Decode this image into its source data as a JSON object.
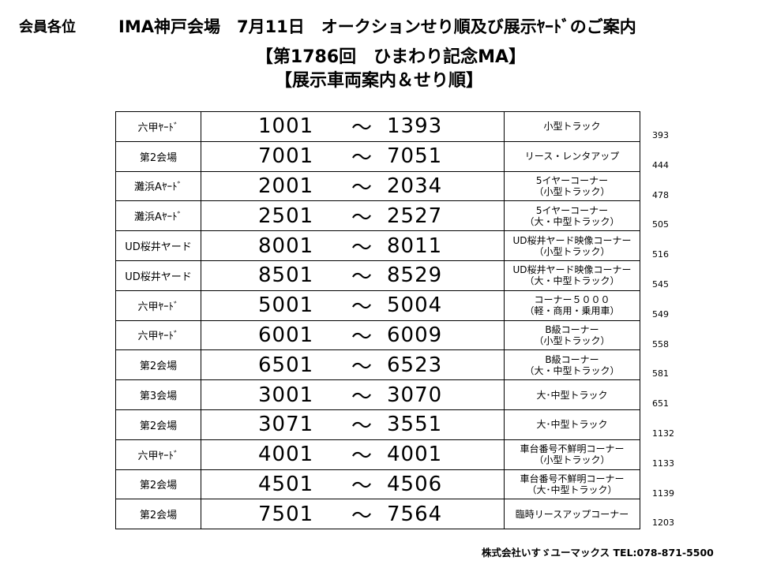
{
  "header": {
    "addressee": "会員各位",
    "title": "IMA神戸会場　7月11日　オークションせり順及び展示ﾔｰﾄﾞのご案内",
    "subtitle1": "【第1786回　ひまわり記念MA】",
    "subtitle2": "【展示車両案内＆せり順】"
  },
  "table": {
    "tilde": "～",
    "rows": [
      {
        "venue": "六甲ﾔｰﾄﾞ",
        "from": "1001",
        "to": "1393",
        "cat1": "小型トラック",
        "cat2": "",
        "count": "393"
      },
      {
        "venue": "第2会場",
        "from": "7001",
        "to": "7051",
        "cat1": "リース・レンタアップ",
        "cat2": "",
        "count": "444"
      },
      {
        "venue": "灘浜Aﾔｰﾄﾞ",
        "from": "2001",
        "to": "2034",
        "cat1": "5イヤーコーナー",
        "cat2": "（小型トラック）",
        "count": "478"
      },
      {
        "venue": "灘浜Aﾔｰﾄﾞ",
        "from": "2501",
        "to": "2527",
        "cat1": "5イヤーコーナー",
        "cat2": "（大・中型トラック）",
        "count": "505"
      },
      {
        "venue": "UD桜井ヤード",
        "from": "8001",
        "to": "8011",
        "cat1": "UD桜井ヤード映像コーナー",
        "cat2": "（小型トラック）",
        "count": "516"
      },
      {
        "venue": "UD桜井ヤード",
        "from": "8501",
        "to": "8529",
        "cat1": "UD桜井ヤード映像コーナー",
        "cat2": "（大・中型トラック）",
        "count": "545"
      },
      {
        "venue": "六甲ﾔｰﾄﾞ",
        "from": "5001",
        "to": "5004",
        "cat1": "コーナー５０００",
        "cat2": "（軽・商用・乗用車）",
        "count": "549"
      },
      {
        "venue": "六甲ﾔｰﾄﾞ",
        "from": "6001",
        "to": "6009",
        "cat1": "B級コーナー",
        "cat2": "（小型トラック）",
        "count": "558"
      },
      {
        "venue": "第2会場",
        "from": "6501",
        "to": "6523",
        "cat1": "B級コーナー",
        "cat2": "（大・中型トラック）",
        "count": "581"
      },
      {
        "venue": "第3会場",
        "from": "3001",
        "to": "3070",
        "cat1": "大･中型トラック",
        "cat2": "",
        "count": "651"
      },
      {
        "venue": "第2会場",
        "from": "3071",
        "to": "3551",
        "cat1": "大･中型トラック",
        "cat2": "",
        "count": "1132"
      },
      {
        "venue": "六甲ﾔｰﾄﾞ",
        "from": "4001",
        "to": "4001",
        "cat1": "車台番号不鮮明コーナー",
        "cat2": "（小型トラック）",
        "count": "1133"
      },
      {
        "venue": "第2会場",
        "from": "4501",
        "to": "4506",
        "cat1": "車台番号不鮮明コーナー",
        "cat2": "（大･中型トラック）",
        "count": "1139"
      },
      {
        "venue": "第2会場",
        "from": "7501",
        "to": "7564",
        "cat1": "臨時リースアップコーナー",
        "cat2": "",
        "count": "1203"
      }
    ]
  },
  "footer": {
    "company": "株式会社いすゞユーマックス",
    "phone": "TEL:078-871-5500"
  }
}
